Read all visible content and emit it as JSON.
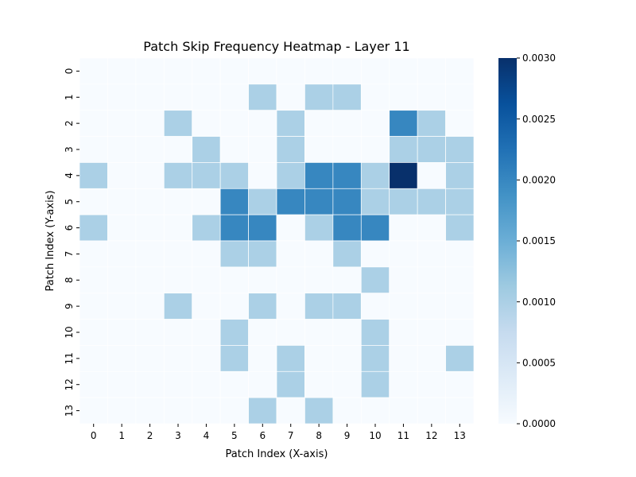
{
  "chart_data": {
    "type": "heatmap",
    "title": "Patch Skip Frequency Heatmap - Layer 11",
    "xlabel": "Patch Index (X-axis)",
    "ylabel": "Patch Index (Y-axis)",
    "x_categories": [
      "0",
      "1",
      "2",
      "3",
      "4",
      "5",
      "6",
      "7",
      "8",
      "9",
      "10",
      "11",
      "12",
      "13"
    ],
    "y_categories": [
      "0",
      "1",
      "2",
      "3",
      "4",
      "5",
      "6",
      "7",
      "8",
      "9",
      "10",
      "11",
      "12",
      "13"
    ],
    "values": [
      [
        0,
        0,
        0,
        0,
        0,
        0,
        0,
        0,
        0,
        0,
        0,
        0,
        0,
        0
      ],
      [
        0,
        0,
        0,
        0,
        0,
        0,
        0.001,
        0,
        0.001,
        0.001,
        0,
        0,
        0,
        0
      ],
      [
        0,
        0,
        0,
        0.001,
        0,
        0,
        0,
        0.001,
        0,
        0,
        0,
        0.002,
        0.001,
        0
      ],
      [
        0,
        0,
        0,
        0,
        0.001,
        0,
        0,
        0.001,
        0,
        0,
        0,
        0.001,
        0.001,
        0.001
      ],
      [
        0.001,
        0,
        0,
        0.001,
        0.001,
        0.001,
        0,
        0.001,
        0.002,
        0.002,
        0.001,
        0.003,
        0,
        0.001
      ],
      [
        0,
        0,
        0,
        0,
        0,
        0.002,
        0.001,
        0.002,
        0.002,
        0.002,
        0.001,
        0.001,
        0.001,
        0.001
      ],
      [
        0.001,
        0,
        0,
        0,
        0.001,
        0.002,
        0.002,
        0,
        0.001,
        0.002,
        0.002,
        0,
        0,
        0.001
      ],
      [
        0,
        0,
        0,
        0,
        0,
        0.001,
        0.001,
        0,
        0,
        0.001,
        0,
        0,
        0,
        0
      ],
      [
        0,
        0,
        0,
        0,
        0,
        0,
        0,
        0,
        0,
        0,
        0.001,
        0,
        0,
        0
      ],
      [
        0,
        0,
        0,
        0.001,
        0,
        0,
        0.001,
        0,
        0.001,
        0.001,
        0,
        0,
        0,
        0
      ],
      [
        0,
        0,
        0,
        0,
        0,
        0.001,
        0,
        0,
        0,
        0,
        0.001,
        0,
        0,
        0
      ],
      [
        0,
        0,
        0,
        0,
        0,
        0.001,
        0,
        0.001,
        0,
        0,
        0.001,
        0,
        0,
        0.001
      ],
      [
        0,
        0,
        0,
        0,
        0,
        0,
        0,
        0.001,
        0,
        0,
        0.001,
        0,
        0,
        0
      ],
      [
        0,
        0,
        0,
        0,
        0,
        0,
        0.001,
        0,
        0.001,
        0,
        0,
        0,
        0,
        0
      ]
    ],
    "colorbar": {
      "min": 0,
      "max": 0.003,
      "ticks": [
        "0.0000",
        "0.0005",
        "0.0010",
        "0.0015",
        "0.0020",
        "0.0025",
        "0.0030"
      ],
      "colormap": "Blues"
    },
    "grid": "white cell borders"
  }
}
